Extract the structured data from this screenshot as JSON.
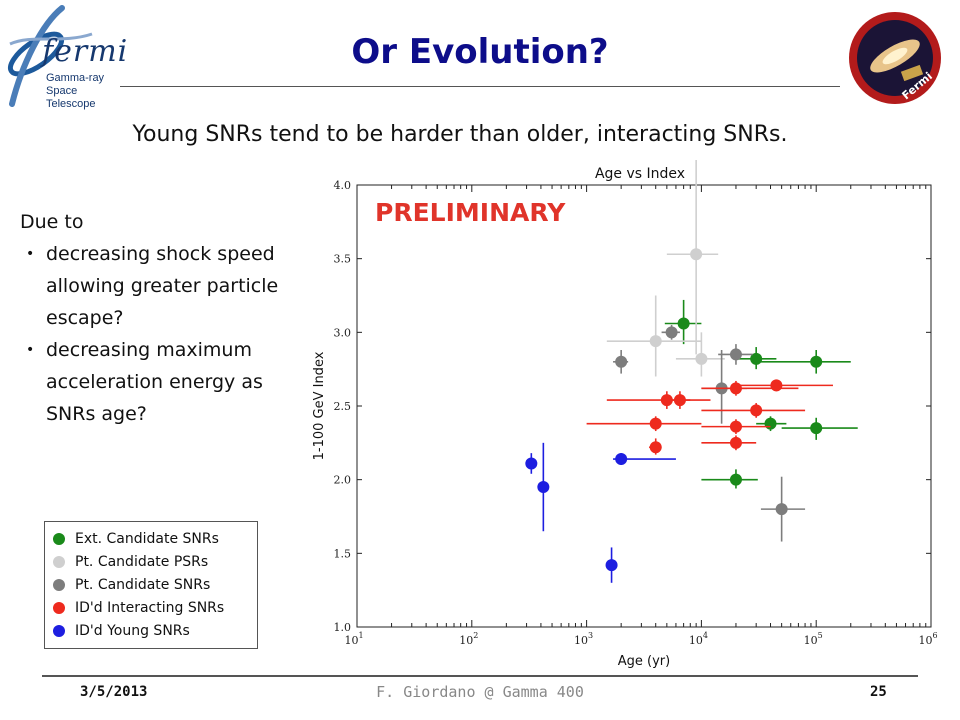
{
  "header": {
    "title": "Or Evolution?",
    "subtitle": "Young SNRs tend to be harder than older, interacting SNRs."
  },
  "logo": {
    "brand": "fermi",
    "line1": "Gamma-ray",
    "line2": "Space Telescope",
    "badge_text": "Fermi"
  },
  "left_text": {
    "intro": "Due to",
    "bullets": [
      "decreasing shock speed allowing greater particle escape?",
      "decreasing maximum acceleration energy as SNRs age?"
    ]
  },
  "legend": {
    "items": [
      {
        "label": "Ext. Candidate SNRs",
        "color": "#1a8a1a"
      },
      {
        "label": "Pt. Candidate PSRs",
        "color": "#cfcfcf"
      },
      {
        "label": "Pt. Candidate SNRs",
        "color": "#7d7d7d"
      },
      {
        "label": "ID'd Interacting SNRs",
        "color": "#ee2a1e"
      },
      {
        "label": "ID'd Young SNRs",
        "color": "#1d1ee0"
      }
    ]
  },
  "chart_data": {
    "type": "scatter",
    "title": "Age vs Index",
    "xlabel": "Age (yr)",
    "ylabel": "1-100 GeV Index",
    "annotation": "PRELIMINARY",
    "x_scale": "log",
    "xlim": [
      10,
      1000000
    ],
    "ylim": [
      1.0,
      4.0
    ],
    "x_ticks": [
      {
        "base": "10",
        "exp": "1"
      },
      {
        "base": "10",
        "exp": "2"
      },
      {
        "base": "10",
        "exp": "3"
      },
      {
        "base": "10",
        "exp": "4"
      },
      {
        "base": "10",
        "exp": "5"
      },
      {
        "base": "10",
        "exp": "6"
      }
    ],
    "y_ticks": [
      "1.0",
      "1.5",
      "2.0",
      "2.5",
      "3.0",
      "3.5",
      "4.0"
    ],
    "series": [
      {
        "name": "Ext. Candidate SNRs",
        "color": "#1a8a1a",
        "points": [
          {
            "x": 7000,
            "y": 3.06,
            "xerr": [
              4800,
              10000
            ],
            "yerr": [
              2.92,
              3.22
            ]
          },
          {
            "x": 30000,
            "y": 2.82,
            "xerr": [
              20000,
              45000
            ],
            "yerr": [
              2.75,
              2.9
            ]
          },
          {
            "x": 100000,
            "y": 2.8,
            "xerr": [
              32000,
              200000
            ],
            "yerr": [
              2.72,
              2.88
            ]
          },
          {
            "x": 40000,
            "y": 2.38,
            "xerr": [
              30000,
              55000
            ],
            "yerr": [
              2.33,
              2.43
            ]
          },
          {
            "x": 100000,
            "y": 2.35,
            "xerr": [
              50000,
              230000
            ],
            "yerr": [
              2.27,
              2.42
            ]
          },
          {
            "x": 20000,
            "y": 2.0,
            "xerr": [
              10000,
              31000
            ],
            "yerr": [
              1.94,
              2.07
            ]
          }
        ]
      },
      {
        "name": "Pt. Candidate PSRs",
        "color": "#cfcfcf",
        "points": [
          {
            "x": 9000,
            "y": 3.53,
            "xerr": [
              5000,
              14000
            ],
            "yerr": [
              2.85,
              4.2
            ]
          },
          {
            "x": 4000,
            "y": 2.94,
            "xerr": [
              1500,
              10000
            ],
            "yerr": [
              2.7,
              3.25
            ]
          },
          {
            "x": 10000,
            "y": 2.82,
            "xerr": [
              6000,
              16000
            ],
            "yerr": [
              2.7,
              3.0
            ]
          }
        ]
      },
      {
        "name": "Pt. Candidate SNRs",
        "color": "#7d7d7d",
        "points": [
          {
            "x": 2000,
            "y": 2.8,
            "xerr": [
              1700,
              2300
            ],
            "yerr": [
              2.72,
              2.88
            ]
          },
          {
            "x": 5500,
            "y": 3.0,
            "xerr": [
              4500,
              6500
            ],
            "yerr": [
              2.95,
              3.05
            ]
          },
          {
            "x": 20000,
            "y": 2.85,
            "xerr": [
              14000,
              28000
            ],
            "yerr": [
              2.78,
              2.92
            ]
          },
          {
            "x": 15000,
            "y": 2.62,
            "xerr": [
              10000,
              25000
            ],
            "yerr": [
              2.38,
              2.88
            ]
          },
          {
            "x": 50000,
            "y": 1.8,
            "xerr": [
              33000,
              80000
            ],
            "yerr": [
              1.58,
              2.02
            ]
          }
        ]
      },
      {
        "name": "ID'd Interacting SNRs",
        "color": "#ee2a1e",
        "points": [
          {
            "x": 45000,
            "y": 2.64,
            "xerr": [
              20000,
              140000
            ],
            "yerr": [
              2.6,
              2.68
            ]
          },
          {
            "x": 20000,
            "y": 2.62,
            "xerr": [
              10000,
              70000
            ],
            "yerr": [
              2.57,
              2.67
            ]
          },
          {
            "x": 5000,
            "y": 2.54,
            "xerr": [
              1500,
              12000
            ],
            "yerr": [
              2.48,
              2.6
            ]
          },
          {
            "x": 6500,
            "y": 2.54,
            "xerr": [
              5000,
              8000
            ],
            "yerr": [
              2.48,
              2.6
            ]
          },
          {
            "x": 30000,
            "y": 2.47,
            "xerr": [
              10000,
              80000
            ],
            "yerr": [
              2.42,
              2.52
            ]
          },
          {
            "x": 4000,
            "y": 2.38,
            "xerr": [
              1000,
              10000
            ],
            "yerr": [
              2.33,
              2.43
            ]
          },
          {
            "x": 20000,
            "y": 2.36,
            "xerr": [
              10000,
              40000
            ],
            "yerr": [
              2.31,
              2.41
            ]
          },
          {
            "x": 20000,
            "y": 2.25,
            "xerr": [
              10000,
              30000
            ],
            "yerr": [
              2.2,
              2.3
            ]
          },
          {
            "x": 4000,
            "y": 2.22,
            "xerr": [
              3500,
              4500
            ],
            "yerr": [
              2.17,
              2.28
            ]
          }
        ]
      },
      {
        "name": "ID'd Young SNRs",
        "color": "#1d1ee0",
        "points": [
          {
            "x": 330,
            "y": 2.11,
            "xerr": [
              300,
              360
            ],
            "yerr": [
              2.04,
              2.18
            ]
          },
          {
            "x": 420,
            "y": 1.95,
            "xerr": [
              400,
              440
            ],
            "yerr": [
              1.65,
              2.25
            ]
          },
          {
            "x": 2000,
            "y": 2.14,
            "xerr": [
              1700,
              6000
            ],
            "yerr": [
              2.1,
              2.18
            ]
          },
          {
            "x": 1650,
            "y": 1.42,
            "xerr": [
              1550,
              1750
            ],
            "yerr": [
              1.3,
              1.54
            ]
          }
        ]
      }
    ]
  },
  "footer": {
    "date": "3/5/2013",
    "center": "F. Giordano @ Gamma 400",
    "page": "25"
  }
}
